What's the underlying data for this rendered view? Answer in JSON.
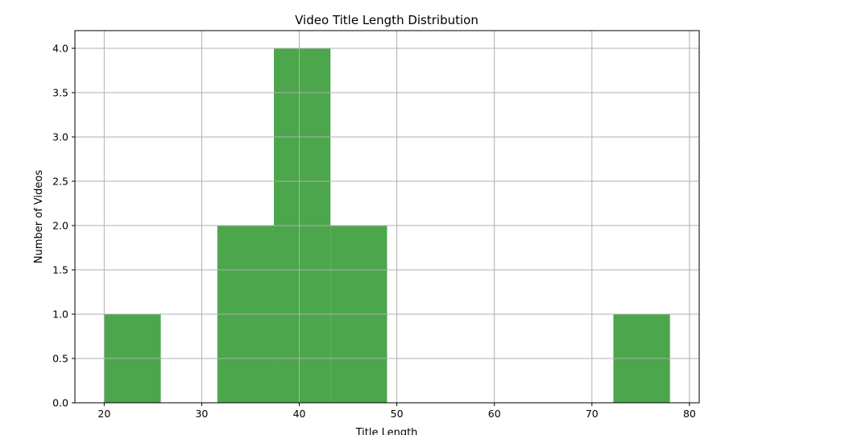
{
  "chart_data": {
    "type": "bar",
    "title": "Video Title Length Distribution",
    "xlabel": "Title Length",
    "ylabel": "Number of Videos",
    "xlim": [
      17,
      81
    ],
    "ylim": [
      0,
      4.2
    ],
    "grid": true,
    "color": "#4ca64c",
    "bins": [
      {
        "start": 20.0,
        "end": 25.8,
        "value": 1
      },
      {
        "start": 25.8,
        "end": 31.6,
        "value": 0
      },
      {
        "start": 31.6,
        "end": 37.4,
        "value": 2
      },
      {
        "start": 37.4,
        "end": 43.2,
        "value": 4
      },
      {
        "start": 43.2,
        "end": 49.0,
        "value": 2
      },
      {
        "start": 49.0,
        "end": 54.8,
        "value": 0
      },
      {
        "start": 54.8,
        "end": 60.6,
        "value": 0
      },
      {
        "start": 60.6,
        "end": 66.4,
        "value": 0
      },
      {
        "start": 66.4,
        "end": 72.2,
        "value": 0
      },
      {
        "start": 72.2,
        "end": 78.0,
        "value": 1
      }
    ],
    "xticks": [
      20,
      30,
      40,
      50,
      60,
      70,
      80
    ],
    "xtick_labels": [
      "20",
      "30",
      "40",
      "50",
      "60",
      "70",
      "80"
    ],
    "yticks": [
      0,
      0.5,
      1,
      1.5,
      2,
      2.5,
      3,
      3.5,
      4
    ],
    "ytick_labels": [
      "0.0",
      "0.5",
      "1.0",
      "1.5",
      "2.0",
      "2.5",
      "3.0",
      "3.5",
      "4.0"
    ]
  }
}
